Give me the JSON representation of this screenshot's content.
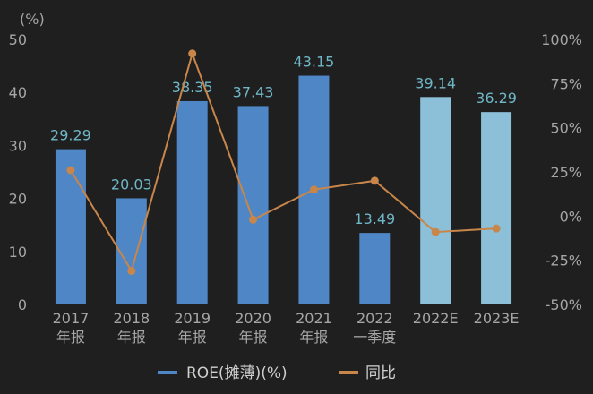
{
  "chart_data": {
    "type": "bar",
    "unit_label": "(%)",
    "categories": [
      [
        "2017",
        "年报"
      ],
      [
        "2018",
        "年报"
      ],
      [
        "2019",
        "年报"
      ],
      [
        "2020",
        "年报"
      ],
      [
        "2021",
        "年报"
      ],
      [
        "2022",
        "一季度"
      ],
      [
        "2022E"
      ],
      [
        "2023E"
      ]
    ],
    "series": [
      {
        "name": "ROE(摊薄)(%)",
        "type": "bar",
        "axis": "left",
        "values": [
          29.29,
          20.03,
          38.35,
          37.43,
          43.15,
          13.49,
          39.14,
          36.29
        ],
        "labels": [
          "29.29",
          "20.03",
          "38.35",
          "37.43",
          "43.15",
          "13.49",
          "39.14",
          "36.29"
        ],
        "colors": [
          "#4f86c6",
          "#4f86c6",
          "#4f86c6",
          "#4f86c6",
          "#4f86c6",
          "#4f86c6",
          "#8cbfd8",
          "#8cbfd8"
        ]
      },
      {
        "name": "同比",
        "type": "line",
        "axis": "right",
        "values": [
          26,
          -31,
          92,
          -2,
          15,
          20,
          -9,
          -7
        ],
        "color": "#c8864a"
      }
    ],
    "y_left": {
      "min": 0,
      "max": 50,
      "ticks": [
        "0",
        "10",
        "20",
        "30",
        "40",
        "50"
      ]
    },
    "y_right": {
      "min": -50,
      "max": 100,
      "ticks": [
        "-50%",
        "-25%",
        "0%",
        "25%",
        "50%",
        "75%",
        "100%"
      ]
    },
    "label_color": "#6fb6c6",
    "grid": false,
    "legend_position": "bottom"
  }
}
